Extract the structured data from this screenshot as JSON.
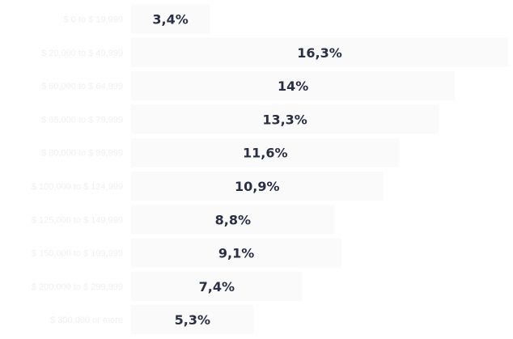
{
  "colors": {
    "bar": "#fafafa",
    "value_text": "#2a2f45",
    "category_text": "#eef0f3",
    "background": "#ffffff"
  },
  "chart_data": {
    "type": "bar",
    "orientation": "horizontal",
    "categories": [
      "$ 0 to $ 19,999",
      "$ 20,000 to $ 49,999",
      "$ 50,000 to $ 64,999",
      "$ 65,000 to $ 79,999",
      "$ 80,000 to $ 99,999",
      "$ 100,000 to $ 124,999",
      "$ 125,000 to $ 149,999",
      "$ 150,000 to $ 199,999",
      "$ 200,000 to $ 299,999",
      "$ 300,000 or more"
    ],
    "values": [
      3.4,
      16.3,
      14,
      13.3,
      11.6,
      10.9,
      8.8,
      9.1,
      7.4,
      5.3
    ],
    "value_labels": [
      "3,4%",
      "16,3%",
      "14%",
      "13,3%",
      "11,6%",
      "10,9%",
      "8,8%",
      "9,1%",
      "7,4%",
      "5,3%"
    ],
    "xlim": [
      0,
      16.3
    ],
    "grid": false,
    "legend": "none"
  }
}
